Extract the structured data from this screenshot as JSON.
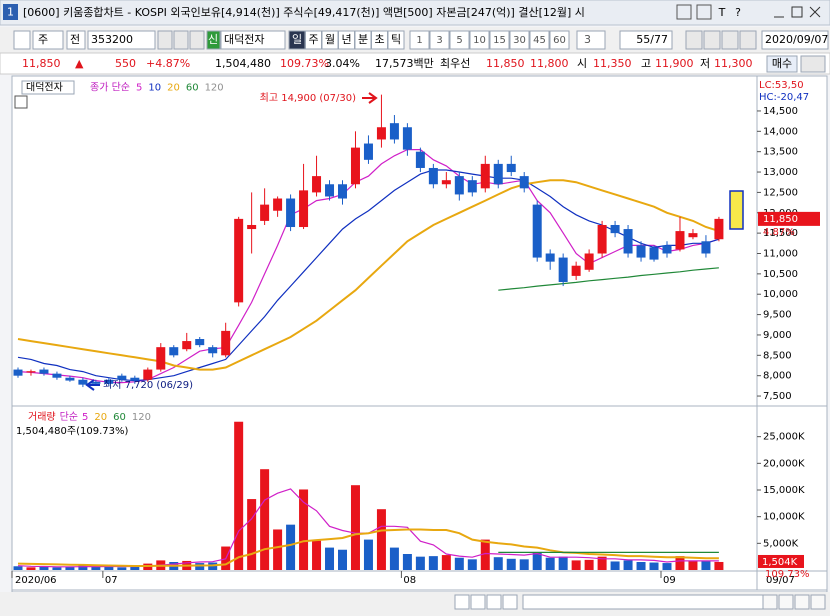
{
  "window": {
    "badge": "1",
    "title": "[0600] 키움종합차트 - KOSPI 외국인보유[4,914(천)] 주식수[49,417(천)] 액면[500] 자본금[247(억)] 결산[12월] 시",
    "buttons": [
      "T",
      "?"
    ]
  },
  "toolbar": {
    "period_type": "주",
    "prev": "전",
    "code": "353200",
    "new_badge": "신",
    "name": "대덕전자",
    "units": [
      "일",
      "주",
      "월",
      "년",
      "분",
      "초",
      "틱"
    ],
    "minutes": [
      "1",
      "3",
      "5",
      "10",
      "15",
      "30",
      "45",
      "60"
    ],
    "count": "3",
    "range": "55/77",
    "date": "2020/09/07",
    "buy": "매수"
  },
  "quote": [
    {
      "text": "11,850",
      "color": "#e0141c"
    },
    {
      "text": "▲",
      "color": "#e0141c"
    },
    {
      "text": "550",
      "color": "#e0141c"
    },
    {
      "text": "+4.87%",
      "color": "#e0141c"
    },
    {
      "text": "1,504,480",
      "color": "#000000"
    },
    {
      "text": "109.73%",
      "color": "#e0141c"
    },
    {
      "text": "3.04%",
      "color": "#000000"
    },
    {
      "text": "17,573백만",
      "color": "#000000"
    },
    {
      "text": "최우선",
      "color": "#000000"
    },
    {
      "text": "11,850",
      "color": "#e0141c"
    },
    {
      "text": "11,800",
      "color": "#e0141c"
    },
    {
      "text": "시",
      "color": "#000000"
    },
    {
      "text": "11,350",
      "color": "#e0141c"
    },
    {
      "text": "고",
      "color": "#000000"
    },
    {
      "text": "11,900",
      "color": "#e0141c"
    },
    {
      "text": "저",
      "color": "#000000"
    },
    {
      "text": "11,300",
      "color": "#e0141c"
    }
  ],
  "chart_data": [
    {
      "type": "candlestick",
      "name": "대덕전자",
      "legend_label": "종가 단순",
      "up_color": "#e8141c",
      "down_color": "#1a5fc8",
      "categories": [
        "2020/06",
        null,
        null,
        null,
        null,
        null,
        null,
        "07",
        null,
        null,
        null,
        null,
        null,
        null,
        null,
        null,
        null,
        null,
        null,
        null,
        null,
        null,
        null,
        null,
        null,
        null,
        null,
        null,
        null,
        null,
        "08",
        null,
        null,
        null,
        null,
        null,
        null,
        null,
        null,
        null,
        null,
        null,
        null,
        null,
        null,
        null,
        null,
        null,
        null,
        null,
        "09",
        null,
        null,
        null,
        null
      ],
      "x_end_label": "09/07",
      "open": [
        8150,
        8080,
        8150,
        8050,
        7950,
        7900,
        7850,
        7900,
        8000,
        7950,
        7900,
        8150,
        8700,
        8650,
        8900,
        8700,
        8500,
        9800,
        11600,
        11800,
        12050,
        12350,
        11650,
        12500,
        12700,
        12700,
        12700,
        13700,
        13800,
        14200,
        14100,
        13500,
        13100,
        12700,
        12900,
        12800,
        12600,
        13200,
        13200,
        12900,
        12200,
        11000,
        10900,
        10450,
        10600,
        11000,
        11700,
        11600,
        11200,
        11150,
        11200,
        11100,
        11400,
        11300,
        11350
      ],
      "high": [
        8200,
        8150,
        8200,
        8100,
        8000,
        7950,
        7900,
        7950,
        8050,
        8000,
        8200,
        8800,
        8750,
        9050,
        8950,
        8750,
        9300,
        11900,
        12500,
        12600,
        12400,
        12450,
        13200,
        13400,
        12800,
        12800,
        14000,
        13900,
        14900,
        14400,
        14200,
        13600,
        13200,
        13000,
        13000,
        12900,
        13400,
        13300,
        13400,
        13000,
        12300,
        11100,
        11000,
        10800,
        11100,
        11800,
        11800,
        11700,
        11300,
        11200,
        11300,
        11900,
        11600,
        11450,
        11900
      ],
      "low": [
        7950,
        8000,
        8000,
        7900,
        7850,
        7720,
        7750,
        7750,
        7850,
        7800,
        7850,
        8100,
        8450,
        8600,
        8700,
        8450,
        8450,
        9700,
        11000,
        11700,
        11900,
        11550,
        11600,
        12400,
        12300,
        12200,
        12600,
        13200,
        13600,
        13700,
        13400,
        13000,
        12600,
        12600,
        12300,
        12400,
        12500,
        12600,
        12900,
        12500,
        10800,
        10600,
        10200,
        10350,
        10550,
        10900,
        11400,
        10900,
        10800,
        10800,
        10900,
        11050,
        11350,
        10900,
        11300
      ],
      "close": [
        8000,
        8110,
        8050,
        7950,
        7880,
        7780,
        7800,
        7800,
        7900,
        7880,
        8150,
        8700,
        8500,
        8850,
        8750,
        8550,
        9100,
        11850,
        11700,
        12200,
        12350,
        11650,
        12550,
        12900,
        12400,
        12350,
        13600,
        13300,
        14100,
        13800,
        13550,
        13100,
        12700,
        12800,
        12450,
        12500,
        13200,
        12700,
        13000,
        12600,
        10900,
        10800,
        10300,
        10700,
        11000,
        11700,
        11500,
        11000,
        10900,
        10850,
        11000,
        11550,
        11500,
        11000,
        11850
      ],
      "series": [
        {
          "name": "5",
          "color": "#d020c8",
          "values": [
            8100,
            8080,
            8050,
            8020,
            7990,
            7950,
            7880,
            7840,
            7830,
            7850,
            7900,
            8050,
            8200,
            8400,
            8600,
            8660,
            8690,
            9240,
            9800,
            10500,
            11200,
            11950,
            12100,
            12300,
            12350,
            12450,
            12750,
            12900,
            13200,
            13400,
            13550,
            13550,
            13300,
            13150,
            12900,
            12700,
            12750,
            12700,
            12750,
            12800,
            12300,
            12000,
            11500,
            11000,
            10750,
            10900,
            11050,
            11200,
            11200,
            11200,
            11050,
            11100,
            11200,
            11250,
            11350
          ]
        },
        {
          "name": "10",
          "color": "#1030c0",
          "values": [
            8450,
            8400,
            8300,
            8250,
            8150,
            8100,
            8000,
            7950,
            7900,
            7880,
            7900,
            7950,
            8000,
            8100,
            8200,
            8300,
            8400,
            8750,
            9100,
            9450,
            9850,
            10200,
            10550,
            10900,
            11250,
            11600,
            11850,
            12050,
            12300,
            12550,
            12750,
            12950,
            13050,
            13050,
            13000,
            12950,
            12900,
            12850,
            12850,
            12800,
            12600,
            12400,
            12150,
            11950,
            11800,
            11700,
            11550,
            11400,
            11250,
            11150,
            11200,
            11200,
            11250,
            11250,
            11350
          ]
        },
        {
          "name": "20",
          "color": "#e8a810",
          "values": [
            8900,
            8850,
            8800,
            8750,
            8700,
            8650,
            8600,
            8550,
            8500,
            8450,
            8400,
            8350,
            8250,
            8200,
            8150,
            8150,
            8200,
            8350,
            8500,
            8650,
            8800,
            8950,
            9150,
            9350,
            9600,
            9850,
            10100,
            10400,
            10700,
            11000,
            11300,
            11500,
            11700,
            11850,
            12000,
            12150,
            12300,
            12450,
            12600,
            12700,
            12750,
            12800,
            12800,
            12750,
            12650,
            12550,
            12450,
            12350,
            12250,
            12150,
            12000,
            11900,
            11800,
            11650,
            11550
          ]
        },
        {
          "name": "60",
          "color": "#208838",
          "values": [
            null,
            null,
            null,
            null,
            null,
            null,
            null,
            null,
            null,
            null,
            null,
            null,
            null,
            null,
            null,
            null,
            null,
            null,
            null,
            null,
            null,
            null,
            null,
            null,
            null,
            null,
            null,
            null,
            null,
            null,
            null,
            null,
            null,
            null,
            null,
            null,
            null,
            10100,
            10130,
            10160,
            10200,
            10230,
            10260,
            10290,
            10330,
            10360,
            10390,
            10420,
            10460,
            10490,
            10520,
            10550,
            10590,
            10620,
            10650
          ]
        },
        {
          "name": "120",
          "color": "#909090"
        }
      ],
      "ylim": [
        7280,
        15260
      ],
      "yticks": [
        {
          "value": 7500,
          "label": "7,500"
        },
        {
          "value": 8000,
          "label": "8,000"
        },
        {
          "value": 8500,
          "label": "8,500"
        },
        {
          "value": 9000,
          "label": "9,000"
        },
        {
          "value": 9500,
          "label": "9,500"
        },
        {
          "value": 10000,
          "label": "10,000"
        },
        {
          "value": 10500,
          "label": "10,500"
        },
        {
          "value": 11000,
          "label": "11,000"
        },
        {
          "value": 11500,
          "label": "11,500"
        },
        {
          "value": 12000,
          "label": "12,000"
        },
        {
          "value": 12500,
          "label": "12,500"
        },
        {
          "value": 13000,
          "label": "13,000"
        },
        {
          "value": 13500,
          "label": "13,500"
        },
        {
          "value": 14000,
          "label": "14,000"
        },
        {
          "value": 14500,
          "label": "14,500"
        }
      ],
      "axis_notes": [
        "LC:53,50",
        "HC:-20,47"
      ],
      "annotations": [
        {
          "text": "최고 14,900 (07/30)",
          "color": "#e0141c"
        },
        {
          "text": "최저 7,720 (06/29)",
          "color": "#0a1a80"
        }
      ],
      "last": {
        "value": 11850,
        "label": "11,850"
      },
      "change_label": "4.87%"
    },
    {
      "type": "bar",
      "legend_label": "거래량",
      "legend_method": "단순",
      "info": "1,504,480주(109.73%)",
      "values": [
        700,
        500,
        600,
        500,
        600,
        900,
        600,
        700,
        500,
        600,
        1200,
        1800,
        1500,
        1700,
        1300,
        1400,
        4400,
        27800,
        13300,
        18900,
        7600,
        8500,
        15100,
        5500,
        4200,
        3800,
        15900,
        5700,
        11400,
        4200,
        3000,
        2500,
        2600,
        2800,
        2300,
        2000,
        5700,
        2400,
        2100,
        2000,
        3200,
        2300,
        2500,
        1800,
        1900,
        2500,
        1600,
        1800,
        1500,
        1400,
        1300,
        2600,
        1700,
        1600,
        1504
      ],
      "series": [
        {
          "name": "5",
          "color": "#d020c8",
          "values": [
            800,
            700,
            650,
            600,
            600,
            620,
            640,
            660,
            660,
            660,
            720,
            920,
            1100,
            1350,
            1500,
            1550,
            2100,
            7300,
            9600,
            13100,
            14400,
            15200,
            12700,
            11100,
            8200,
            7400,
            6900,
            6900,
            8200,
            8200,
            8000,
            5400,
            4700,
            3000,
            2600,
            2400,
            3100,
            3000,
            2900,
            2800,
            3100,
            2400,
            2400,
            2400,
            2300,
            2100,
            2100,
            1900,
            1900,
            1800,
            1500,
            1700,
            1700,
            1700,
            1700
          ]
        },
        {
          "name": "20",
          "color": "#e8a810",
          "values": [
            1200,
            1150,
            1100,
            1050,
            1000,
            950,
            900,
            850,
            800,
            750,
            750,
            780,
            800,
            820,
            850,
            870,
            1050,
            2400,
            3000,
            3900,
            4300,
            4700,
            5400,
            5600,
            5800,
            6000,
            6700,
            6900,
            7400,
            7500,
            7600,
            7600,
            7500,
            7500,
            6900,
            5700,
            5300,
            5000,
            4800,
            4400,
            4200,
            3700,
            3300,
            3200,
            3000,
            2900,
            2800,
            2600,
            2600,
            2500,
            2400,
            2400,
            2300,
            2200,
            2200
          ]
        },
        {
          "name": "60",
          "color": "#208838",
          "values": [
            null,
            null,
            null,
            null,
            null,
            null,
            null,
            null,
            null,
            null,
            null,
            null,
            null,
            null,
            null,
            null,
            null,
            null,
            null,
            null,
            null,
            null,
            null,
            null,
            null,
            null,
            null,
            null,
            null,
            null,
            null,
            null,
            null,
            null,
            null,
            null,
            null,
            3300,
            3300,
            3300,
            3300,
            3300,
            3300,
            3300,
            3300,
            3300,
            3300,
            3300,
            3300,
            3300,
            3300,
            3300,
            3300,
            3300,
            3300
          ]
        },
        {
          "name": "120",
          "color": "#909090"
        }
      ],
      "ylim": [
        0,
        30000
      ],
      "yticks": [
        {
          "value": 5000,
          "label": "5,000K"
        },
        {
          "value": 10000,
          "label": "10,000K"
        },
        {
          "value": 15000,
          "label": "15,000K"
        },
        {
          "value": 20000,
          "label": "20,000K"
        },
        {
          "value": 25000,
          "label": "25,000K"
        }
      ],
      "last": {
        "value": 1504,
        "label": "1,504K"
      },
      "ratio_label": "109.73%"
    }
  ]
}
